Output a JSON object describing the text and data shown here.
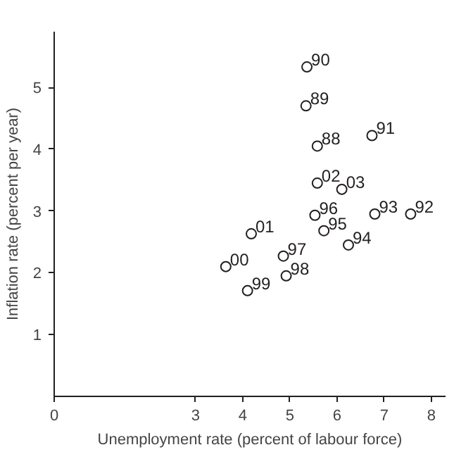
{
  "chart_data": {
    "type": "scatter",
    "xlabel": "Unemployment rate (percent of labour force)",
    "ylabel": "Inflation rate (percent per year)",
    "x": [
      5.36,
      5.34,
      5.58,
      6.74,
      5.58,
      6.1,
      5.53,
      6.8,
      7.56,
      5.72,
      6.24,
      4.18,
      3.64,
      4.86,
      4.92,
      4.1
    ],
    "series": [
      {
        "color": "#231f20",
        "values": [
          5.33,
          4.7,
          4.05,
          4.22,
          3.45,
          3.35,
          2.93,
          2.95,
          2.95,
          2.68,
          2.45,
          2.63,
          2.1,
          2.27,
          1.95,
          1.71
        ]
      }
    ],
    "annotations": [
      {
        "text": "90",
        "x": 5.36,
        "y": 5.33
      },
      {
        "text": "89",
        "x": 5.34,
        "y": 4.7
      },
      {
        "text": "88",
        "x": 5.58,
        "y": 4.05
      },
      {
        "text": "91",
        "x": 6.74,
        "y": 4.22
      },
      {
        "text": "02",
        "x": 5.58,
        "y": 3.45
      },
      {
        "text": "03",
        "x": 6.1,
        "y": 3.35
      },
      {
        "text": "96",
        "x": 5.53,
        "y": 2.93
      },
      {
        "text": "93",
        "x": 6.8,
        "y": 2.95
      },
      {
        "text": "92",
        "x": 7.56,
        "y": 2.95
      },
      {
        "text": "95",
        "x": 5.72,
        "y": 2.68
      },
      {
        "text": "94",
        "x": 6.24,
        "y": 2.45
      },
      {
        "text": "01",
        "x": 4.18,
        "y": 2.63
      },
      {
        "text": "00",
        "x": 3.64,
        "y": 2.1
      },
      {
        "text": "97",
        "x": 4.86,
        "y": 2.27
      },
      {
        "text": "98",
        "x": 4.92,
        "y": 1.95
      },
      {
        "text": "99",
        "x": 4.1,
        "y": 1.71
      }
    ],
    "xlim": [
      0,
      8.3
    ],
    "xticks": [
      0,
      3,
      4,
      5,
      6,
      7,
      8
    ],
    "ylim": [
      0,
      5.9
    ],
    "yticks": [
      1,
      2,
      3,
      4,
      5
    ],
    "marker": "circle",
    "grid": false
  }
}
